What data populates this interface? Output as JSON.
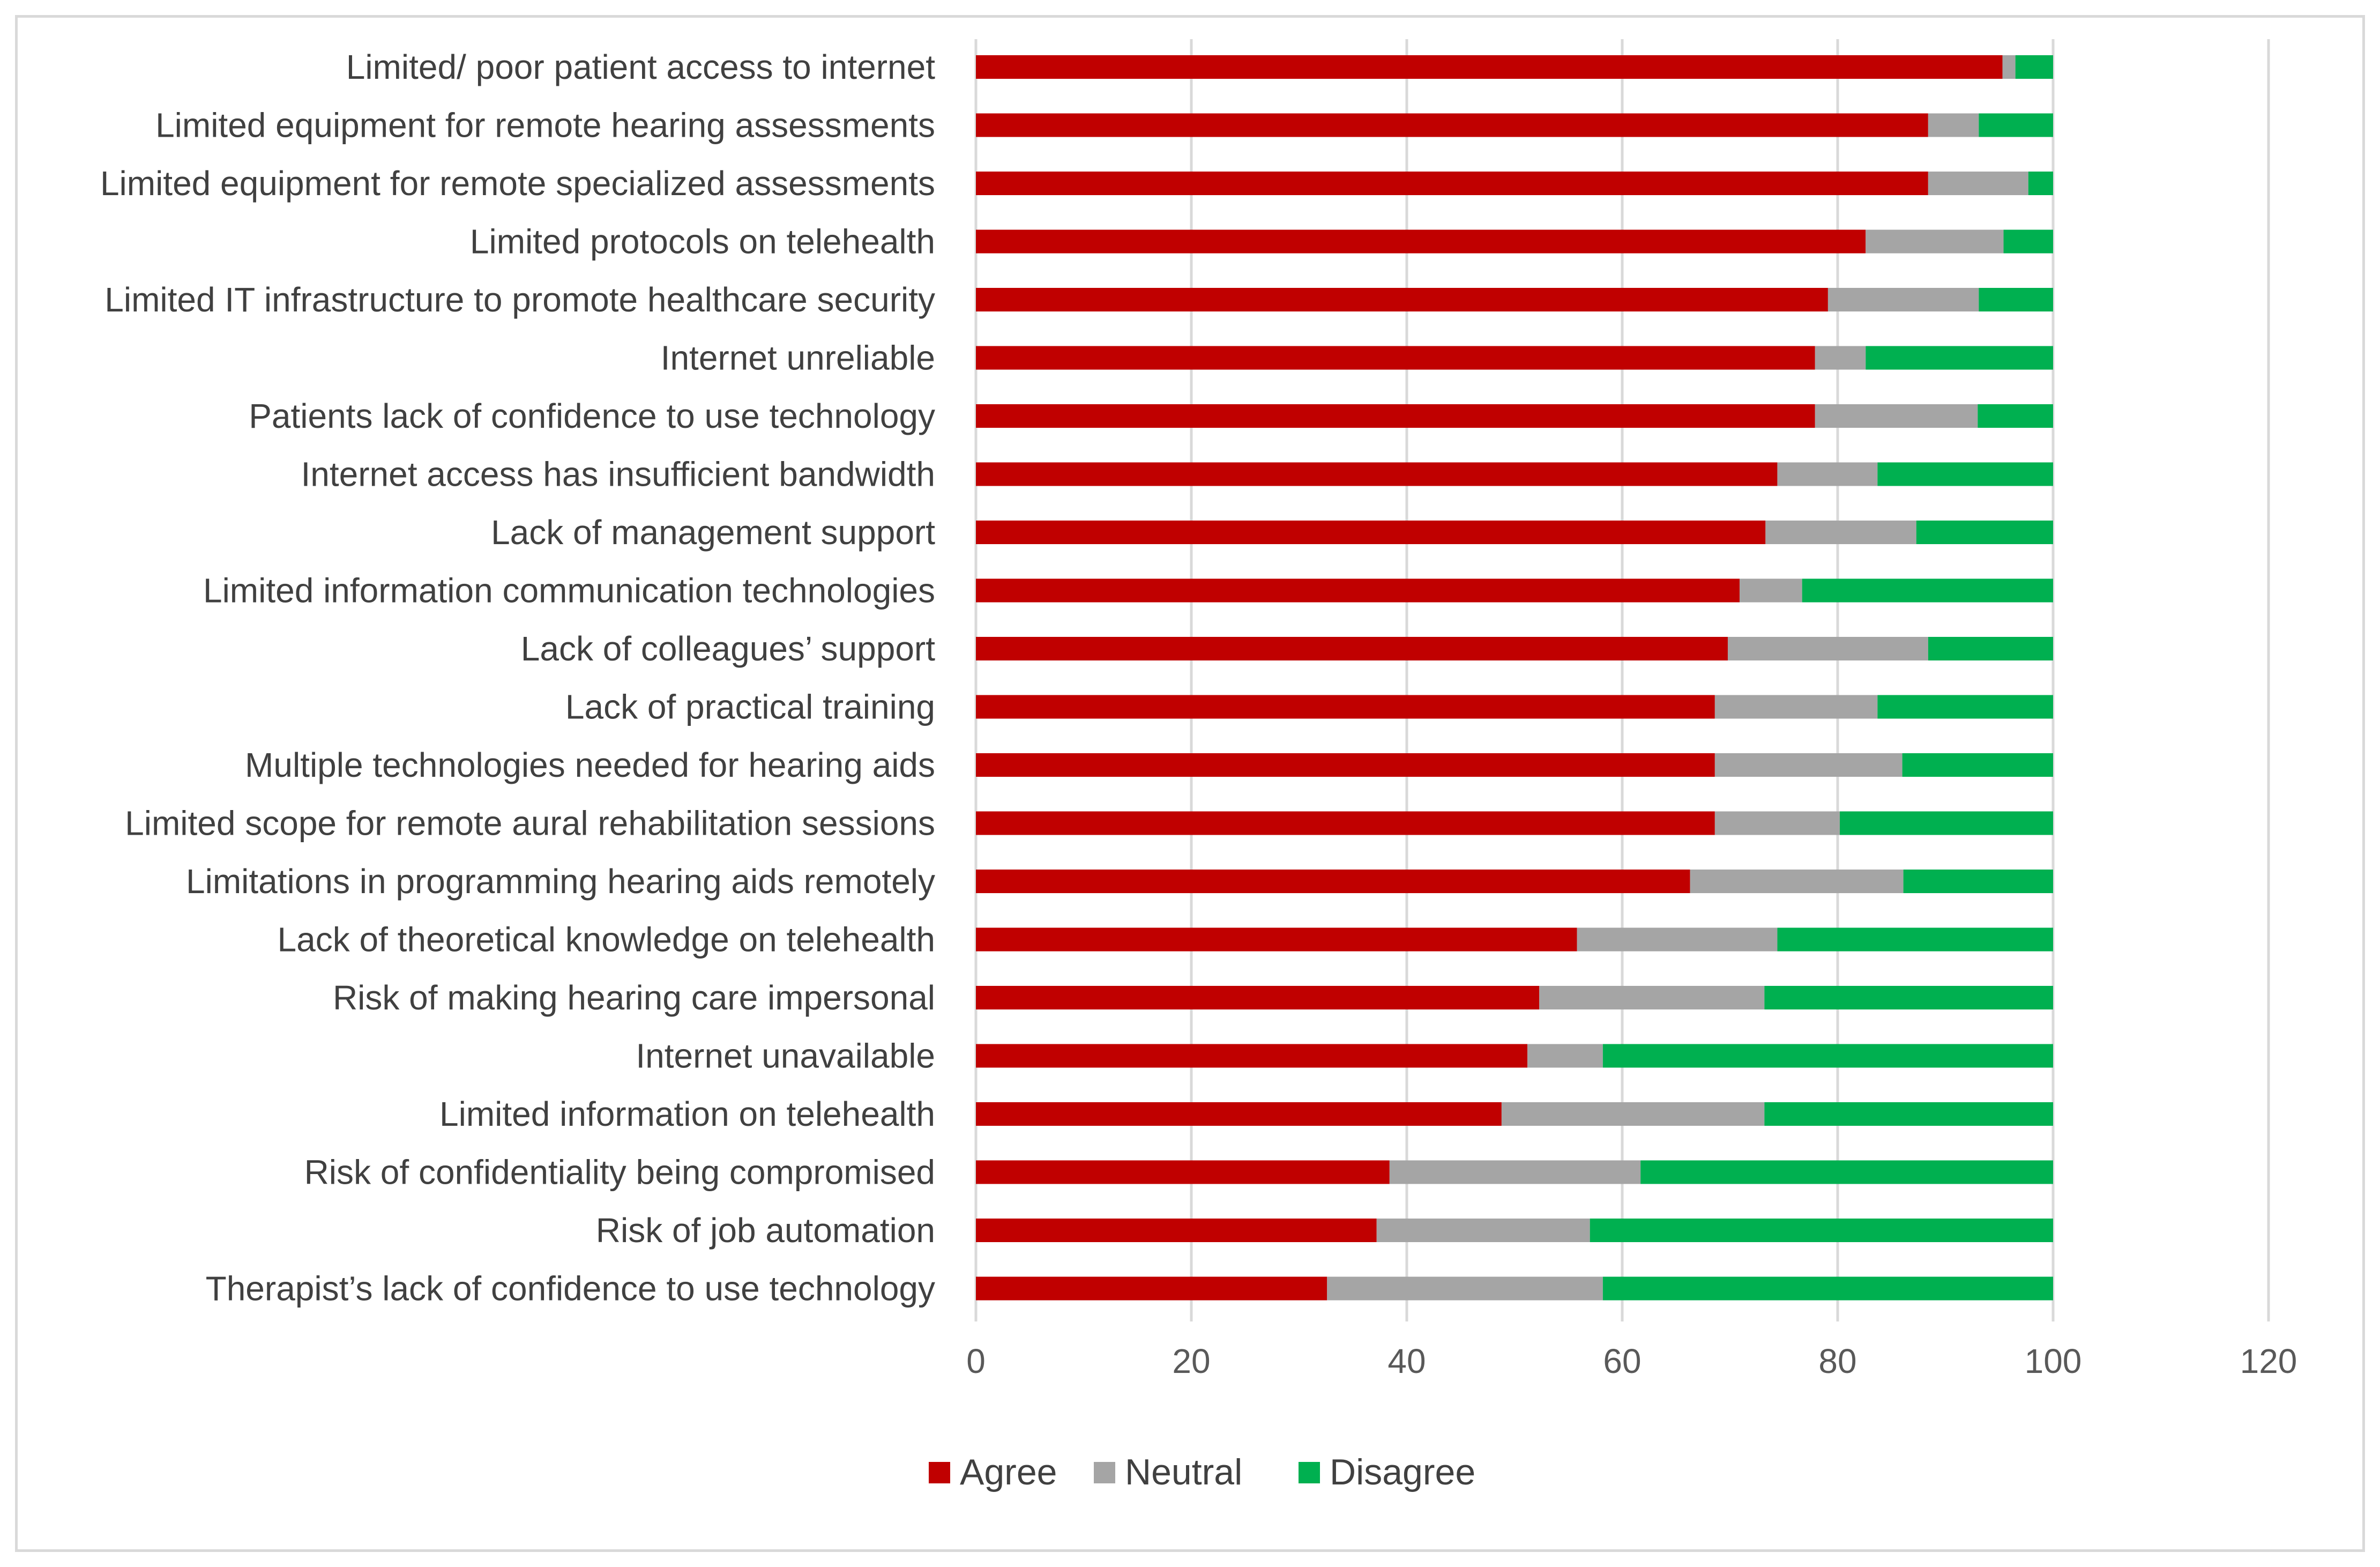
{
  "chart_data": {
    "type": "bar",
    "orientation": "horizontal",
    "stacked": true,
    "title": "",
    "xlabel": "",
    "ylabel": "",
    "xlim": [
      0,
      120
    ],
    "xticks": [
      0,
      20,
      40,
      60,
      80,
      100,
      120
    ],
    "grid": "vertical",
    "legend_position": "bottom-center",
    "categories": [
      "Limited/ poor patient access to internet",
      "Limited equipment for remote hearing assessments",
      "Limited equipment for remote specialized assessments",
      "Limited protocols on telehealth",
      "Limited IT infrastructure to promote healthcare security",
      "Internet unreliable",
      "Patients lack of confidence to use technology",
      "Internet access has insufficient bandwidth",
      "Lack of management support",
      "Limited information communication technologies",
      "Lack of colleagues’ support",
      "Lack of practical training",
      "Multiple technologies needed for hearing aids",
      "Limited scope for remote aural rehabilitation sessions",
      "Limitations in programming hearing aids remotely",
      "Lack of theoretical knowledge on telehealth",
      "Risk of making hearing care impersonal",
      "Internet unavailable",
      "Limited information on telehealth",
      "Risk of confidentiality being compromised",
      "Risk of job automation",
      "Therapist’s lack of confidence to use technology"
    ],
    "series": [
      {
        "name": "Agree",
        "color": "#c00000",
        "values": [
          95.3,
          88.4,
          88.4,
          82.6,
          79.1,
          77.9,
          77.9,
          74.4,
          73.3,
          70.9,
          69.8,
          68.6,
          68.6,
          68.6,
          66.3,
          55.8,
          52.3,
          51.2,
          48.8,
          38.4,
          37.2,
          32.6
        ]
      },
      {
        "name": "Neutral",
        "color": "#a5a5a5",
        "values": [
          1.2,
          4.7,
          9.3,
          12.8,
          14.0,
          4.7,
          15.1,
          9.3,
          14.0,
          5.8,
          18.6,
          15.1,
          17.4,
          11.6,
          19.8,
          18.6,
          20.9,
          7.0,
          24.4,
          23.3,
          19.8,
          25.6
        ]
      },
      {
        "name": "Disagree",
        "color": "#00b050",
        "values": [
          3.5,
          6.9,
          2.3,
          4.6,
          6.9,
          17.4,
          7.0,
          16.3,
          12.7,
          23.3,
          11.6,
          16.3,
          14.0,
          19.8,
          13.9,
          25.6,
          26.8,
          41.8,
          26.8,
          38.3,
          43.0,
          41.8
        ]
      }
    ]
  }
}
